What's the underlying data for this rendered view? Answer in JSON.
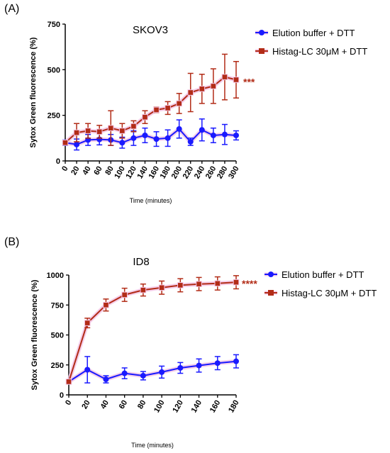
{
  "colors": {
    "blue": "#1a1aff",
    "red": "#b22c17",
    "halo": "#f3c6e6"
  },
  "chart_data": [
    {
      "panel": "(A)",
      "type": "line",
      "title": "SKOV3",
      "xlabel": "Time (minutes)",
      "ylabel": "Sytox Green fluorescence (%)",
      "xlim": [
        0,
        300
      ],
      "ylim": [
        0,
        750
      ],
      "xticks": [
        0,
        20,
        40,
        60,
        80,
        100,
        120,
        140,
        160,
        180,
        200,
        220,
        240,
        260,
        280,
        300
      ],
      "yticks": [
        0,
        250,
        500,
        750
      ],
      "x_tick_rotation": "rotated",
      "grid": false,
      "legend_position": "top-right",
      "significance": "***",
      "x": [
        0,
        20,
        40,
        60,
        80,
        100,
        120,
        140,
        160,
        180,
        200,
        220,
        240,
        260,
        280,
        300
      ],
      "series": [
        {
          "name": "Elution buffer + DTT",
          "color": "blue",
          "marker": "circle",
          "values": [
            100,
            90,
            115,
            118,
            115,
            100,
            125,
            140,
            120,
            125,
            175,
            105,
            170,
            140,
            145,
            140
          ],
          "errors": [
            15,
            30,
            30,
            30,
            30,
            30,
            40,
            40,
            40,
            45,
            50,
            20,
            60,
            40,
            55,
            25
          ]
        },
        {
          "name": "Histag-LC 30μM  + DTT",
          "color": "red",
          "marker": "square",
          "values": [
            100,
            155,
            165,
            160,
            180,
            165,
            190,
            240,
            280,
            290,
            315,
            375,
            395,
            410,
            460,
            445
          ],
          "errors": [
            10,
            50,
            40,
            35,
            95,
            40,
            30,
            35,
            15,
            35,
            55,
            105,
            80,
            95,
            125,
            100
          ]
        }
      ]
    },
    {
      "panel": "(B)",
      "type": "line",
      "title": "ID8",
      "xlabel": "Time (minutes)",
      "ylabel": "Sytox Green fluorescence (%)",
      "xlim": [
        0,
        180
      ],
      "ylim": [
        0,
        1000
      ],
      "xticks": [
        0,
        20,
        40,
        60,
        80,
        100,
        120,
        140,
        160,
        180
      ],
      "yticks": [
        0,
        250,
        500,
        750,
        1000
      ],
      "x_tick_rotation": "rotated",
      "grid": false,
      "legend_position": "top-right",
      "significance": "****",
      "x": [
        0,
        20,
        40,
        60,
        80,
        100,
        120,
        140,
        160,
        180
      ],
      "series": [
        {
          "name": "Elution buffer + DTT",
          "color": "blue",
          "marker": "circle",
          "values": [
            110,
            210,
            130,
            180,
            160,
            190,
            225,
            245,
            265,
            280
          ],
          "errors": [
            15,
            110,
            30,
            45,
            35,
            50,
            45,
            55,
            55,
            55
          ]
        },
        {
          "name": "Histag-LC 30μM  + DTT",
          "color": "red",
          "marker": "square",
          "values": [
            110,
            600,
            750,
            835,
            875,
            895,
            915,
            925,
            930,
            940
          ],
          "errors": [
            10,
            40,
            50,
            55,
            50,
            55,
            55,
            55,
            55,
            55
          ]
        }
      ]
    }
  ]
}
